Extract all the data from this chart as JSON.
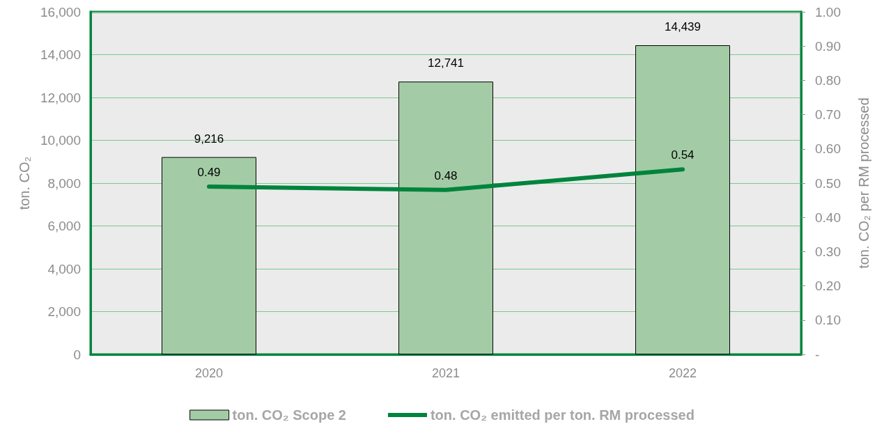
{
  "chart_data": {
    "type": "bar",
    "categories": [
      "2020",
      "2021",
      "2022"
    ],
    "ylabel": "ton. CO₂",
    "y2label": "ton. CO₂ per RM processed",
    "ylim": [
      0,
      16000
    ],
    "yticks": [
      {
        "value": 0,
        "label": "0"
      },
      {
        "value": 2000,
        "label": "2,000"
      },
      {
        "value": 4000,
        "label": "4,000"
      },
      {
        "value": 6000,
        "label": "6,000"
      },
      {
        "value": 8000,
        "label": "8,000"
      },
      {
        "value": 10000,
        "label": "10,000"
      },
      {
        "value": 12000,
        "label": "12,000"
      },
      {
        "value": 14000,
        "label": "14,000"
      },
      {
        "value": 16000,
        "label": "16,000"
      }
    ],
    "y2lim": [
      0,
      1
    ],
    "y2ticks": [
      {
        "value": 0,
        "label": "-"
      },
      {
        "value": 0.1,
        "label": "0.10"
      },
      {
        "value": 0.2,
        "label": "0.20"
      },
      {
        "value": 0.3,
        "label": "0.30"
      },
      {
        "value": 0.4,
        "label": "0.40"
      },
      {
        "value": 0.5,
        "label": "0.50"
      },
      {
        "value": 0.6,
        "label": "0.60"
      },
      {
        "value": 0.7,
        "label": "0.70"
      },
      {
        "value": 0.8,
        "label": "0.80"
      },
      {
        "value": 0.9,
        "label": "0.90"
      },
      {
        "value": 1,
        "label": "1.00"
      }
    ],
    "series": [
      {
        "name": "ton. CO₂ Scope 2",
        "color": "#a3cca6",
        "values": [
          9216,
          12741,
          14439
        ],
        "value_labels": [
          "9,216",
          "12,741",
          "14,439"
        ]
      },
      {
        "name": "ton. CO₂ emitted per ton. RM processed",
        "type": "line",
        "axis": "y2",
        "color": "#00843d",
        "values": [
          0.49,
          0.48,
          0.54
        ],
        "value_labels": [
          "0.49",
          "0.48",
          "0.54"
        ]
      }
    ],
    "grid": "y",
    "legend": "bottom",
    "marker": "none"
  }
}
